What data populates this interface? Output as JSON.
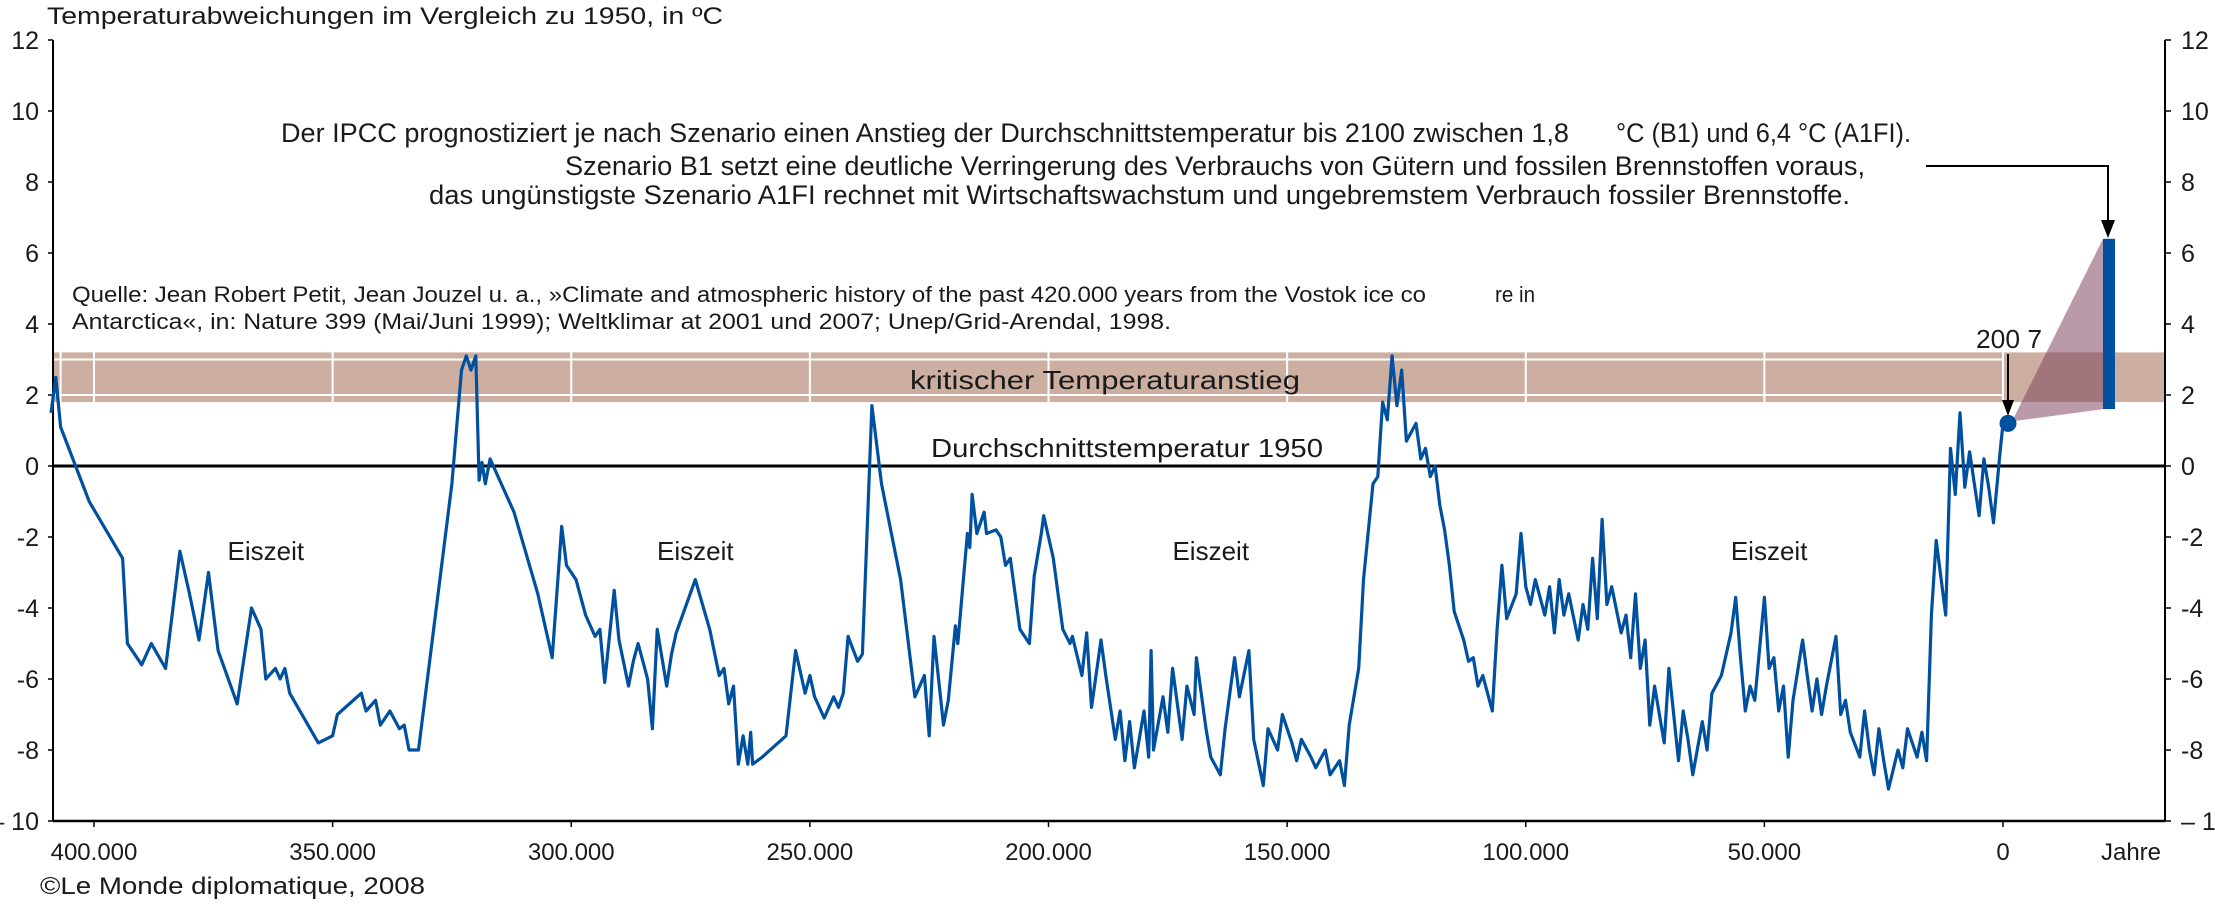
{
  "chart_data": {
    "type": "line",
    "title": "Temperaturabweichungen im Vergleich zu 1950, in ºC",
    "xlabel": "Jahre",
    "ylim": [
      -10,
      12
    ],
    "xlim": [
      409000,
      0
    ],
    "x_reversed": true,
    "y_ticks": [
      -10,
      -8,
      -6,
      -4,
      -2,
      0,
      2,
      4,
      6,
      8,
      10,
      12
    ],
    "y_tick_labels": [
      "– 10",
      "-8",
      "-6",
      "-4",
      "-2",
      "0",
      "2",
      "4",
      "6",
      "8",
      "10",
      "12"
    ],
    "x_ticks": [
      400000,
      350000,
      300000,
      250000,
      200000,
      150000,
      100000,
      50000,
      0
    ],
    "x_tick_labels": [
      "400.000",
      "350.000",
      "300.000",
      "250.000",
      "200.000",
      "150.000",
      "100.000",
      "50.000",
      "0"
    ],
    "grid": false,
    "colors": {
      "series": "#0050a0",
      "band": "#cdafa1",
      "projection_fan": "#ba9ba9",
      "baseline": "#000000"
    },
    "series": [
      {
        "x": [
          409000,
          408000,
          407000,
          401000,
          394000,
          393000,
          390000,
          388000,
          385000,
          382000,
          380000,
          378000,
          376000,
          374000,
          370000,
          367000,
          365000,
          364000,
          362000,
          361000,
          360000,
          359000,
          353000,
          350000,
          349000,
          344000,
          343000,
          341000,
          340000,
          338000,
          336000,
          335000,
          334000,
          332000,
          325000,
          323000,
          322000,
          321000,
          320000,
          319300,
          318700,
          318000,
          317000,
          316000,
          312000,
          307000,
          304000,
          302000,
          301000,
          299000,
          297000,
          295000,
          294000,
          293000,
          291000,
          290000,
          288000,
          287000,
          286000,
          284000,
          283000,
          282000,
          280000,
          279000,
          278000,
          274000,
          271000,
          269000,
          268000,
          267000,
          266000,
          265000,
          264000,
          263000,
          262400,
          262000,
          260000,
          255000,
          253000,
          251000,
          250000,
          249000,
          247000,
          245000,
          244000,
          243000,
          242000,
          240000,
          239000,
          237000,
          235000,
          231000,
          228000,
          226000,
          225000,
          224000,
          222000,
          221000,
          219500,
          219000,
          217000,
          216500,
          216000,
          215000,
          213500,
          213000,
          211000,
          210000,
          209000,
          208000,
          207000,
          206000,
          204000,
          203000,
          201500,
          201000,
          199000,
          197000,
          195500,
          195000,
          193000,
          192000,
          191000,
          189000,
          188000,
          186000,
          185000,
          184000,
          183000,
          182000,
          180000,
          179000,
          178500,
          178000,
          176000,
          175000,
          174000,
          172000,
          171000,
          169500,
          169000,
          167000,
          166000,
          164000,
          163000,
          161000,
          160000,
          158000,
          157000,
          155000,
          154000,
          152000,
          151000,
          149000,
          148000,
          147000,
          145000,
          144000,
          142000,
          141000,
          139000,
          138000,
          137000,
          135000,
          134000,
          132000,
          131000,
          130000,
          129000,
          128000,
          127000,
          126000,
          125000,
          123000,
          122000,
          121000,
          120000,
          119000,
          118000,
          117000,
          116000,
          115000,
          113000,
          112000,
          111000,
          110000,
          109000,
          107000,
          106000,
          105000,
          104000,
          102000,
          101000,
          100000,
          99000,
          98000,
          96000,
          95000,
          94000,
          93000,
          92000,
          91000,
          89000,
          88000,
          87000,
          86000,
          85000,
          84000,
          83000,
          82000,
          80000,
          79000,
          78000,
          77000,
          76000,
          75000,
          74000,
          73000,
          71000,
          70000,
          68000,
          67000,
          66000,
          65000,
          63000,
          62000,
          61000,
          59000,
          57000,
          56000,
          55000,
          54000,
          53000,
          52000,
          50000,
          49000,
          48000,
          47000,
          46000,
          45000,
          44000,
          42000,
          41000,
          40000,
          39000,
          38000,
          37000,
          35000,
          34000,
          33000,
          32000,
          30000,
          29000,
          28000,
          27000,
          26000,
          25000,
          24000,
          22000,
          21000,
          20000,
          18000,
          17000,
          16000,
          15000,
          14000,
          12000,
          11000,
          10000,
          9000,
          8000,
          7000,
          5000,
          4000,
          3000,
          2000,
          600,
          0
        ],
        "y": [
          1.5,
          2.5,
          1.1,
          -1.0,
          -2.6,
          -5.0,
          -5.6,
          -5.0,
          -5.7,
          -2.4,
          -3.6,
          -4.9,
          -3.0,
          -5.2,
          -6.7,
          -4.0,
          -4.6,
          -6.0,
          -5.7,
          -6.0,
          -5.7,
          -6.4,
          -7.8,
          -7.6,
          -7.0,
          -6.4,
          -6.9,
          -6.6,
          -7.3,
          -6.9,
          -7.4,
          -7.3,
          -8.0,
          -8.0,
          -0.5,
          2.7,
          3.1,
          2.7,
          3.1,
          -0.4,
          0.1,
          -0.5,
          0.2,
          -0.1,
          -1.3,
          -3.6,
          -5.4,
          -1.7,
          -2.8,
          -3.2,
          -4.2,
          -4.8,
          -4.6,
          -6.1,
          -3.5,
          -4.9,
          -6.2,
          -5.5,
          -5.0,
          -6.0,
          -7.4,
          -4.6,
          -6.2,
          -5.3,
          -4.7,
          -3.2,
          -4.6,
          -5.9,
          -5.7,
          -6.7,
          -6.2,
          -8.4,
          -7.6,
          -8.4,
          -7.5,
          -8.4,
          -8.2,
          -7.6,
          -5.2,
          -6.4,
          -5.9,
          -6.5,
          -7.1,
          -6.5,
          -6.8,
          -6.4,
          -4.8,
          -5.5,
          -5.3,
          1.7,
          -0.5,
          -3.2,
          -6.5,
          -5.9,
          -7.6,
          -4.8,
          -7.3,
          -6.6,
          -4.5,
          -5.0,
          -1.9,
          -2.3,
          -0.8,
          -1.9,
          -1.3,
          -1.9,
          -1.8,
          -2.0,
          -2.8,
          -2.6,
          -3.6,
          -4.6,
          -5.0,
          -3.1,
          -1.9,
          -1.4,
          -2.6,
          -4.6,
          -5.0,
          -4.8,
          -5.9,
          -4.7,
          -6.8,
          -4.9,
          -5.9,
          -7.7,
          -6.9,
          -8.3,
          -7.2,
          -8.5,
          -6.9,
          -8.2,
          -5.2,
          -8.0,
          -6.5,
          -7.5,
          -5.7,
          -7.7,
          -6.2,
          -7.0,
          -5.4,
          -7.4,
          -8.2,
          -8.7,
          -7.4,
          -5.4,
          -6.5,
          -5.2,
          -7.7,
          -9.0,
          -7.4,
          -8.0,
          -7.0,
          -7.8,
          -8.3,
          -7.7,
          -8.2,
          -8.5,
          -8.0,
          -8.7,
          -8.3,
          -9.0,
          -7.3,
          -5.7,
          -3.2,
          -0.5,
          -0.3,
          1.8,
          1.3,
          3.1,
          1.7,
          2.7,
          0.7,
          1.2,
          0.2,
          0.5,
          -0.3,
          0.0,
          -1.1,
          -1.8,
          -2.8,
          -4.1,
          -4.9,
          -5.5,
          -5.4,
          -6.2,
          -5.9,
          -6.9,
          -4.6,
          -2.8,
          -4.3,
          -3.6,
          -1.9,
          -3.4,
          -3.9,
          -3.2,
          -4.2,
          -3.4,
          -4.7,
          -3.2,
          -4.2,
          -3.6,
          -4.9,
          -3.9,
          -4.6,
          -2.6,
          -4.3,
          -1.5,
          -3.9,
          -3.4,
          -4.7,
          -4.2,
          -5.4,
          -3.6,
          -5.7,
          -4.9,
          -7.3,
          -6.2,
          -7.8,
          -5.7,
          -8.3,
          -6.9,
          -7.7,
          -8.7,
          -7.2,
          -8.0,
          -6.4,
          -5.9,
          -4.7,
          -3.7,
          -5.4,
          -6.9,
          -6.2,
          -6.6,
          -3.7,
          -5.7,
          -5.4,
          -6.9,
          -6.2,
          -8.2,
          -6.6,
          -4.9,
          -5.9,
          -6.9,
          -6.0,
          -7.0,
          -6.2,
          -4.8,
          -7.0,
          -6.6,
          -7.5,
          -8.2,
          -6.9,
          -8.0,
          -8.7,
          -7.4,
          -8.3,
          -9.1,
          -8.0,
          -8.5,
          -7.4,
          -8.2,
          -7.5,
          -8.3,
          -4.2,
          -2.1,
          -4.2,
          0.5,
          -0.8,
          1.5,
          -0.6,
          0.4,
          -1.4,
          0.2,
          -0.6,
          -1.6,
          0.4,
          1.2
        ]
      }
    ],
    "current_point": {
      "label": "200 7",
      "year": 2007,
      "value": 1.2
    },
    "projection": {
      "year": 2100,
      "low": 1.8,
      "high": 6.4,
      "color": "#0050a0"
    },
    "critical_band": {
      "label": "kritischer Temperaturanstieg",
      "low": 1.8,
      "high": 3.2
    },
    "baseline": {
      "label": "Durchschnittstemperatur 1950",
      "value": 0
    },
    "ice_age_labels": [
      {
        "text": "Eiszeit",
        "year": 364000
      },
      {
        "text": "Eiszeit",
        "year": 274000
      },
      {
        "text": "Eiszeit",
        "year": 166000
      },
      {
        "text": "Eiszeit",
        "year": 49000
      }
    ],
    "annotation": {
      "line1_a": "Der IPCC prognostiziert je nach Szenario einen Anstieg der Durchschnittstemperatur bis 2100 zwischen 1,8",
      "line1_b": "°C (B1) und  6,4 °C (A1FI).",
      "line2": "Szenario B1 setzt eine deutliche Verringerung des Verbrauchs von Gütern und fossilen Brennstoffen voraus,",
      "line3": "das ungünstigste Szenario A1FI rechnet mit Wirtschaftswachstum und ungebremstem Verbrauch fossiler Brennstoffe."
    },
    "source": {
      "line1_a": "Quelle: Jean Robert Petit, Jean Jouzel u. a., »Climate and atmospheric history of the past 420.000 years from the Vostok ice co",
      "line1_b": "re in",
      "line2": "Antarctica«, in:   Nature 399 (Mai/Juni 1999);   Weltklimar at  2001 und 2007; Unep/Grid-Arendal, 1998."
    },
    "credit": "©Le Monde diplomatique, 2008"
  }
}
